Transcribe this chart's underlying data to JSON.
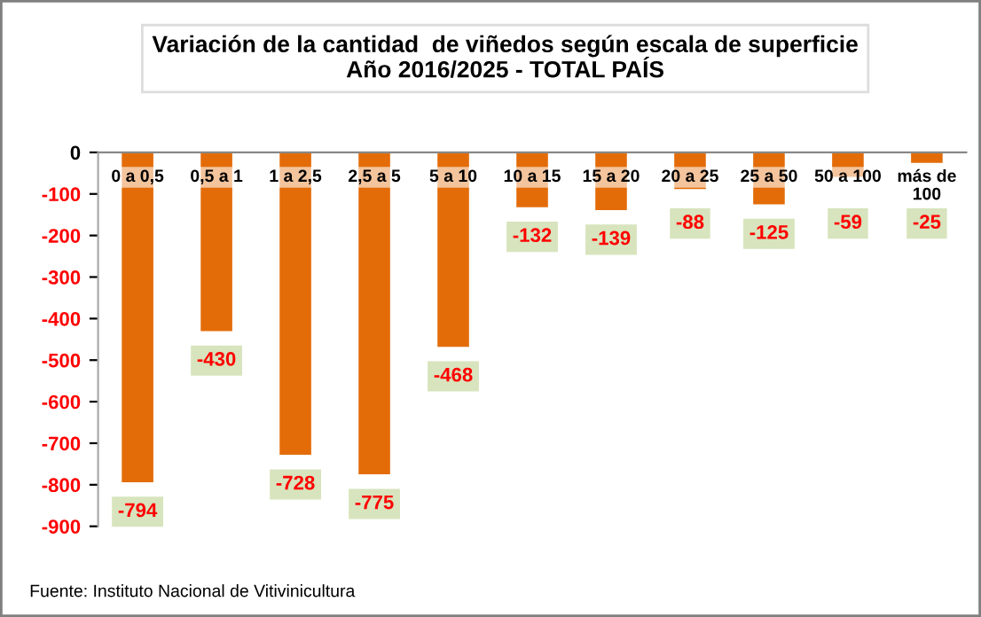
{
  "chart_data": {
    "type": "bar",
    "title": "Variación de la cantidad  de viñedos según escala de superficie\nAño 2016/2025 - TOTAL PAÍS",
    "categories": [
      "0 a 0,5",
      "0,5 a 1",
      "1 a 2,5",
      "2,5 a 5",
      "5 a 10",
      "10 a 15",
      "15 a 20",
      "20 a 25",
      "25 a 50",
      "50 a 100",
      "más de\n100"
    ],
    "values": [
      -794,
      -430,
      -728,
      -775,
      -468,
      -132,
      -139,
      -88,
      -125,
      -59,
      -25
    ],
    "color": "#e36c09",
    "ylim": [
      -900,
      0
    ],
    "yticks": [
      0,
      -100,
      -200,
      -300,
      -400,
      -500,
      -600,
      -700,
      -800,
      -900
    ],
    "data_labels": true,
    "grid": false,
    "legend": false,
    "annotations": [
      "Fuente: Instituto Nacional de Vitivinicultura"
    ]
  }
}
